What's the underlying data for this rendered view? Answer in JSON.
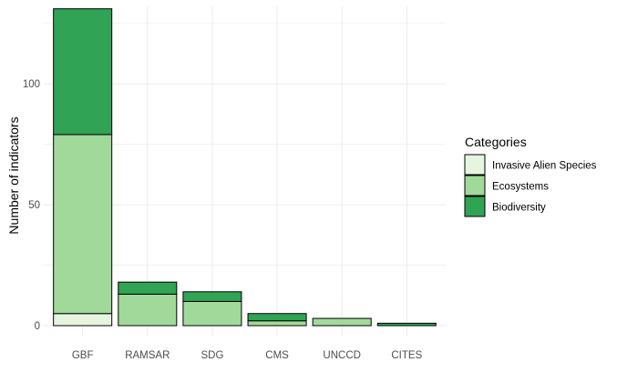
{
  "chart_data": {
    "type": "bar",
    "stacked": true,
    "categories": [
      "GBF",
      "RAMSAR",
      "SDG",
      "CMS",
      "UNCCD",
      "CITES"
    ],
    "series": [
      {
        "name": "Invasive Alien Species",
        "color": "#e5f5e0",
        "values": [
          5,
          0,
          0,
          0,
          0,
          0
        ]
      },
      {
        "name": "Ecosystems",
        "color": "#a1d99b",
        "values": [
          74,
          13,
          10,
          2,
          3,
          0
        ]
      },
      {
        "name": "Biodiversity",
        "color": "#31a354",
        "values": [
          52,
          5,
          4,
          3,
          0,
          1
        ]
      }
    ],
    "title": "",
    "xlabel": "",
    "ylabel": "Number of indicators",
    "ylim": [
      -4.5,
      132
    ],
    "yticks": [
      0,
      50,
      100
    ],
    "grid": true,
    "legend_title": "Categories",
    "legend_position": "right"
  }
}
